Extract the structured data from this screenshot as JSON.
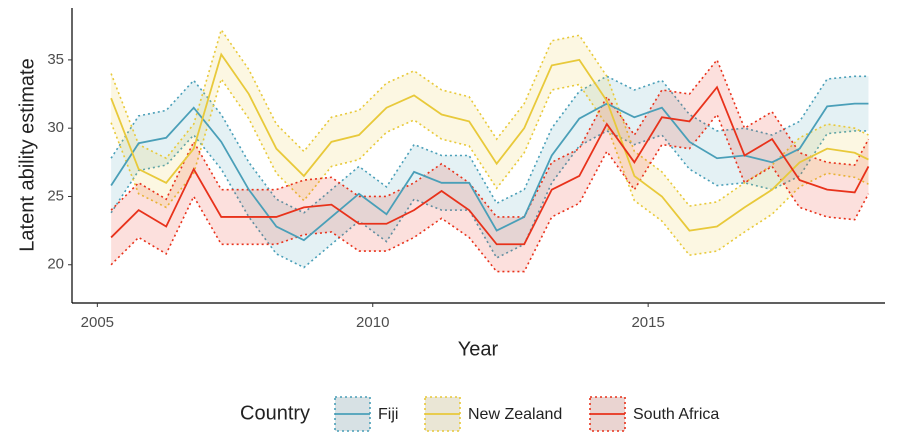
{
  "chart_data": {
    "type": "line",
    "x_label": "Year",
    "y_label": "Latent ability estimate",
    "legend_title": "Country",
    "legend_position": "bottom",
    "x": [
      2005.25,
      2005.75,
      2006.25,
      2006.75,
      2007.25,
      2007.75,
      2008.25,
      2008.75,
      2009.25,
      2009.75,
      2010.25,
      2010.75,
      2011.25,
      2011.75,
      2012.25,
      2012.75,
      2013.25,
      2013.75,
      2014.25,
      2014.75,
      2015.25,
      2015.75,
      2016.25,
      2016.75,
      2017.25,
      2017.75,
      2018.25,
      2018.75,
      2019.0
    ],
    "xlim": [
      2004.54,
      2019.3
    ],
    "xticks": [
      2005,
      2010,
      2015
    ],
    "ylim": [
      17.2,
      38.8
    ],
    "yticks": [
      20,
      25,
      30,
      35
    ],
    "series": [
      {
        "name": "Fiji",
        "color": "#4a9fb8",
        "values": [
          25.8,
          28.9,
          29.3,
          31.5,
          29,
          25.5,
          22.8,
          21.8,
          23.5,
          25.2,
          23.7,
          26.8,
          26,
          26,
          22.5,
          23.5,
          28,
          30.7,
          31.8,
          30.8,
          31.5,
          29,
          27.8,
          28,
          27.5,
          28.5,
          31.6,
          31.8,
          31.8
        ],
        "lower": [
          23.8,
          26.9,
          27.3,
          29.5,
          27,
          23.5,
          20.8,
          19.8,
          21.5,
          23.2,
          21.7,
          24.8,
          24,
          24,
          20.5,
          21.5,
          26,
          28.7,
          29.8,
          28.8,
          29.5,
          27,
          25.8,
          26,
          25.5,
          26.5,
          29.6,
          29.8,
          29.8
        ],
        "upper": [
          27.8,
          30.9,
          31.3,
          33.5,
          31,
          27.5,
          24.8,
          23.8,
          25.5,
          27.2,
          25.7,
          28.8,
          28,
          28,
          24.5,
          25.5,
          30,
          32.7,
          33.8,
          32.8,
          33.5,
          31,
          29.8,
          30,
          29.5,
          30.5,
          33.6,
          33.8,
          33.8
        ]
      },
      {
        "name": "New Zealand",
        "color": "#e8c93a",
        "values": [
          32.2,
          27,
          26,
          28.5,
          35.4,
          32.5,
          28.5,
          26.5,
          29,
          29.5,
          31.5,
          32.4,
          31,
          30.5,
          27.4,
          30,
          34.6,
          35,
          32,
          26.5,
          25,
          22.5,
          22.8,
          24.2,
          25.5,
          27.5,
          28.5,
          28.2,
          27.7
        ],
        "lower": [
          30.4,
          25.2,
          24.2,
          26.7,
          33.6,
          30.7,
          26.7,
          24.7,
          27.2,
          27.7,
          29.7,
          30.6,
          29.2,
          28.7,
          25.6,
          28.2,
          32.8,
          33.2,
          30.2,
          24.7,
          23.2,
          20.7,
          21,
          22.4,
          23.7,
          25.7,
          26.7,
          26.4,
          25.9
        ],
        "upper": [
          34,
          28.8,
          27.8,
          30.3,
          37.2,
          34.3,
          30.3,
          28.3,
          30.8,
          31.3,
          33.3,
          34.2,
          32.8,
          32.3,
          29.2,
          31.8,
          36.4,
          36.8,
          33.8,
          28.3,
          26.8,
          24.3,
          24.6,
          26,
          27.3,
          29.3,
          30.3,
          30,
          29.5
        ]
      },
      {
        "name": "South Africa",
        "color": "#e8321b",
        "values": [
          22,
          24,
          22.8,
          27,
          23.5,
          23.5,
          23.5,
          24.2,
          24.4,
          23,
          23,
          24,
          25.4,
          24,
          21.5,
          21.5,
          25.5,
          26.5,
          30.3,
          27.5,
          30.8,
          30.5,
          33,
          28,
          29.2,
          26.2,
          25.5,
          25.3,
          27.2
        ],
        "lower": [
          20,
          22,
          20.8,
          25,
          21.5,
          21.5,
          21.5,
          22.2,
          22.4,
          21,
          21,
          22,
          23.4,
          22,
          19.5,
          19.5,
          23.5,
          24.5,
          28.3,
          25.5,
          28.8,
          28.5,
          31,
          26,
          27.2,
          24.2,
          23.5,
          23.3,
          25.2
        ],
        "upper": [
          24,
          26,
          24.8,
          29,
          25.5,
          25.5,
          25.5,
          26.2,
          26.4,
          25,
          25,
          26,
          27.4,
          26,
          23.5,
          23.5,
          27.5,
          28.5,
          32.3,
          29.5,
          32.8,
          32.5,
          35,
          30,
          31.2,
          28.2,
          27.5,
          27.3,
          29.2
        ]
      }
    ]
  }
}
